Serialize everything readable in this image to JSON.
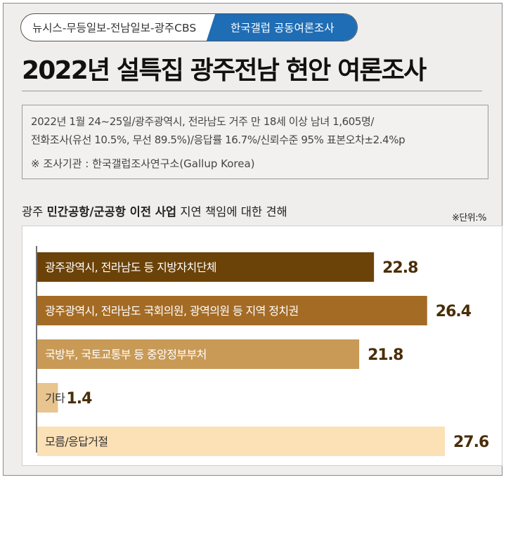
{
  "header": {
    "tag_left": "뉴시스-무등일보-전남일보-광주CBS",
    "tag_right": "한국갤럽 공동여론조사",
    "title": "2022년 설특집 광주전남 현안 여론조사"
  },
  "survey_info": {
    "line1": "2022년 1월 24~25일/광주광역시, 전라남도 거주 만 18세 이상 남녀 1,605명/",
    "line2": "전화조사(유선 10.5%, 무선 89.5%)/응답률 16.7%/신뢰수준 95% 표본오차±2.4%p",
    "agency": "※ 조사기관 : 한국갤럽조사연구소(Gallup Korea)"
  },
  "question": {
    "prefix": "광주 ",
    "bold": "민간공항/군공항 이전 사업",
    "suffix": " 지연 책임에 대한 견해"
  },
  "unit_label": "※단위:%",
  "colors": {
    "bars": [
      "#6b4208",
      "#a46b25",
      "#c89a56",
      "#e8c48e",
      "#fce0b6"
    ],
    "bar_text": [
      "#ffffff",
      "#ffffff",
      "#ffffff",
      "#333333",
      "#333333"
    ],
    "value_text": "#4a2e08"
  },
  "chart_data": {
    "type": "bar",
    "orientation": "horizontal",
    "categories": [
      "광주광역시, 전라남도 등 지방자치단체",
      "광주광역시, 전라남도 국회의원, 광역의원 등 지역 정치권",
      "국방부, 국토교통부 등 중앙정부부처",
      "기타",
      "모름/응답거절"
    ],
    "values": [
      22.8,
      26.4,
      21.8,
      1.4,
      27.6
    ],
    "value_labels": [
      "22.8",
      "26.4",
      "21.8",
      "1.4",
      "27.6"
    ],
    "xlim": [
      0,
      27.6
    ],
    "grid": false,
    "legend": "none"
  }
}
